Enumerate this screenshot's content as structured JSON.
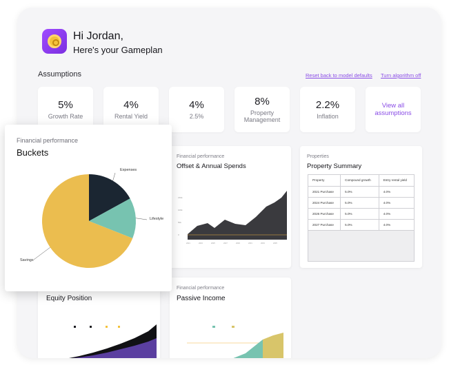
{
  "header": {
    "greeting": "Hi Jordan,",
    "subtitle": "Here's your Gameplan"
  },
  "assumptions": {
    "title": "Assumptions",
    "reset_link": "Reset back to model defaults",
    "algorithm_link": "Turn algorithm off",
    "cards": [
      {
        "value": "5%",
        "label": "Growth Rate"
      },
      {
        "value": "4%",
        "label": "Rental Yield"
      },
      {
        "value": "4%",
        "label": "2.5%"
      },
      {
        "value": "8%",
        "label": "Property Management"
      },
      {
        "value": "2.2%",
        "label": "Inflation"
      }
    ],
    "view_all": "View all assumptions"
  },
  "offset_panel": {
    "kicker": "Financial performance",
    "title": "Offset & Annual Spends"
  },
  "property_summary": {
    "kicker": "Properties",
    "title": "Property Summary",
    "columns": [
      "Property",
      "Compound growth",
      "Entry rental yield"
    ],
    "rows": [
      [
        "2021 Purchase",
        "5.0%",
        "4.0%"
      ],
      [
        "2024 Purchase",
        "5.0%",
        "4.0%"
      ],
      [
        "2026 Purchase",
        "5.0%",
        "4.0%"
      ],
      [
        "2027 Purchase",
        "5.0%",
        "4.0%"
      ]
    ]
  },
  "equity_panel": {
    "title": "Equity Position"
  },
  "passive_panel": {
    "kicker": "Financial performance",
    "title": "Passive Income"
  },
  "buckets": {
    "kicker": "Financial performance",
    "title": "Buckets"
  },
  "colors": {
    "accent": "#8a4de6",
    "savings": "#ebbd4f",
    "expenses": "#1b2632",
    "lifestyle": "#77c3b0",
    "area_dark": "#3a3a3e",
    "area_purple": "#5b3fa0"
  },
  "chart_data": {
    "type": "pie",
    "title": "Buckets",
    "labels": [
      "Expenses",
      "Lifestyle",
      "Savings"
    ],
    "values": [
      17,
      14,
      69
    ],
    "colors": [
      "#1b2632",
      "#77c3b0",
      "#ebbd4f"
    ]
  }
}
